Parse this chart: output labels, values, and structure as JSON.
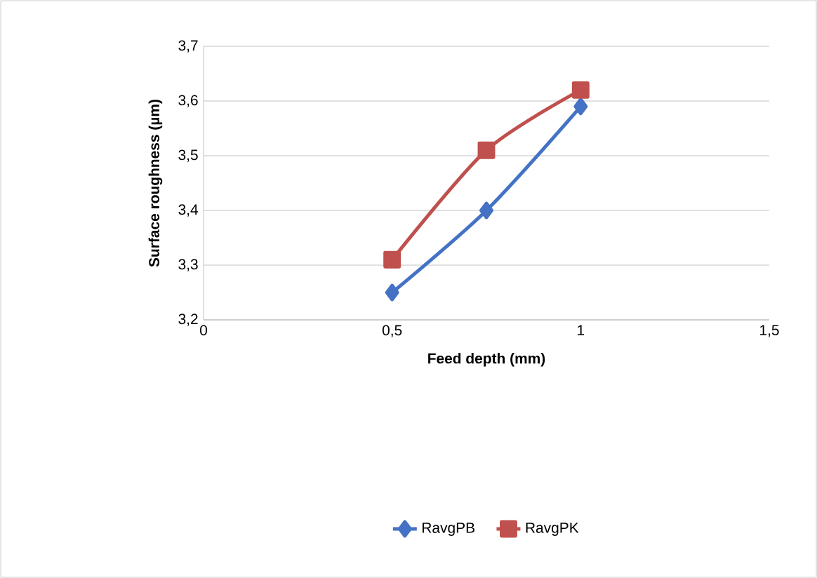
{
  "chart_data": {
    "type": "line",
    "xlabel": "Feed depth (mm)",
    "ylabel": "Surface roughness (µm)",
    "x": [
      0.5,
      0.75,
      1
    ],
    "series": [
      {
        "name": "RavgPB",
        "color": "#4472c4",
        "marker": "diamond",
        "values": [
          3.25,
          3.4,
          3.59
        ]
      },
      {
        "name": "RavgPK",
        "color": "#c0504d",
        "marker": "square",
        "values": [
          3.31,
          3.51,
          3.62
        ]
      }
    ],
    "xlim": [
      0,
      1.5
    ],
    "xticks": [
      0,
      {
        "value": 0.5,
        "label": "0,5"
      },
      1,
      {
        "value": 1.5,
        "label": "1,5"
      }
    ],
    "ylim": [
      3.2,
      3.7
    ],
    "yticks": [
      {
        "value": 3.2,
        "label": "3,2"
      },
      {
        "value": 3.3,
        "label": "3,3"
      },
      {
        "value": 3.4,
        "label": "3,4"
      },
      {
        "value": 3.5,
        "label": "3,5"
      },
      {
        "value": 3.6,
        "label": "3,6"
      },
      {
        "value": 3.7,
        "label": "3,7"
      }
    ],
    "grid": "y",
    "legend": "bottom",
    "line_style": "solid"
  }
}
